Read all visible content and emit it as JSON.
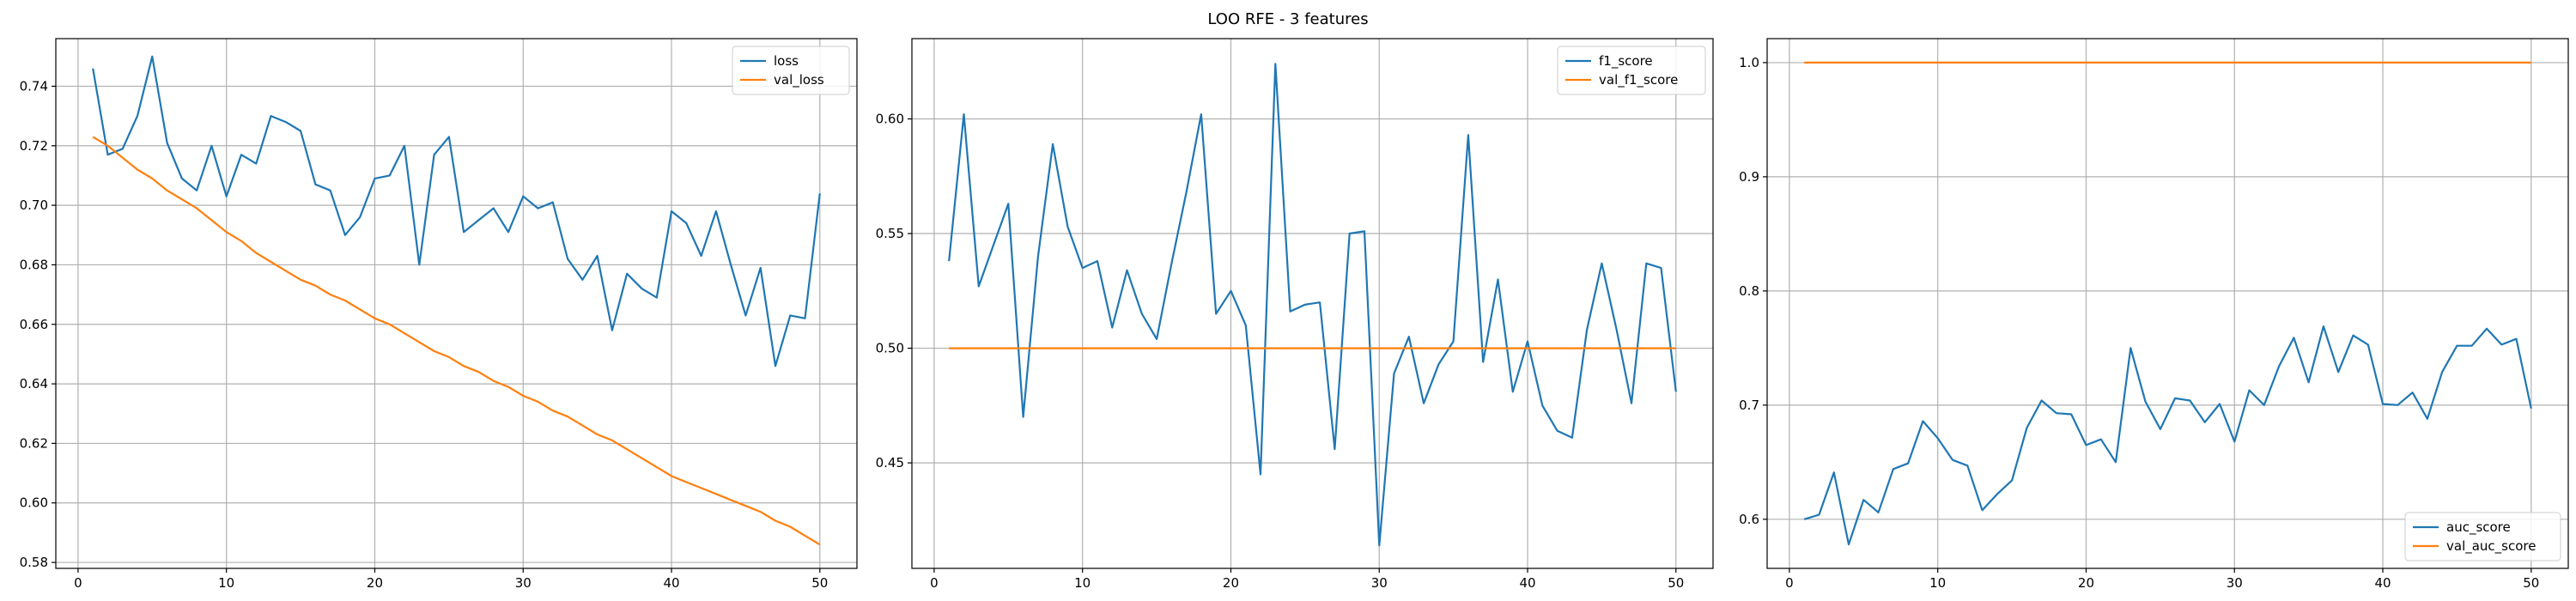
{
  "figure": {
    "title": "LOO RFE - 3 features"
  },
  "chart_data": [
    {
      "type": "line",
      "x": [
        1,
        2,
        3,
        4,
        5,
        6,
        7,
        8,
        9,
        10,
        11,
        12,
        13,
        14,
        15,
        16,
        17,
        18,
        19,
        20,
        21,
        22,
        23,
        24,
        25,
        26,
        27,
        28,
        29,
        30,
        31,
        32,
        33,
        34,
        35,
        36,
        37,
        38,
        39,
        40,
        41,
        42,
        43,
        44,
        45,
        46,
        47,
        48,
        49,
        50
      ],
      "series": [
        {
          "name": "loss",
          "color": "#1f77b4",
          "values": [
            0.746,
            0.717,
            0.719,
            0.73,
            0.75,
            0.721,
            0.709,
            0.705,
            0.72,
            0.703,
            0.717,
            0.714,
            0.73,
            0.728,
            0.725,
            0.707,
            0.705,
            0.69,
            0.696,
            0.709,
            0.71,
            0.72,
            0.68,
            0.717,
            0.723,
            0.691,
            0.695,
            0.699,
            0.691,
            0.703,
            0.699,
            0.701,
            0.682,
            0.675,
            0.683,
            0.658,
            0.677,
            0.672,
            0.669,
            0.698,
            0.694,
            0.683,
            0.698,
            0.68,
            0.663,
            0.679,
            0.646,
            0.663,
            0.662,
            0.704
          ]
        },
        {
          "name": "val_loss",
          "color": "#ff7f0e",
          "values": [
            0.723,
            0.72,
            0.716,
            0.712,
            0.709,
            0.705,
            0.702,
            0.699,
            0.695,
            0.691,
            0.688,
            0.684,
            0.681,
            0.678,
            0.675,
            0.673,
            0.67,
            0.668,
            0.665,
            0.662,
            0.66,
            0.657,
            0.654,
            0.651,
            0.649,
            0.646,
            0.644,
            0.641,
            0.639,
            0.636,
            0.634,
            0.631,
            0.629,
            0.626,
            0.623,
            0.621,
            0.618,
            0.615,
            0.612,
            0.609,
            0.607,
            0.605,
            0.603,
            0.601,
            0.599,
            0.597,
            0.594,
            0.592,
            0.589,
            0.586
          ]
        }
      ],
      "xlim": [
        -1.5,
        52.5
      ],
      "ylim": [
        0.578,
        0.756
      ],
      "xticks": [
        0,
        10,
        20,
        30,
        40,
        50
      ],
      "yticks": [
        0.58,
        0.6,
        0.62,
        0.64,
        0.66,
        0.68,
        0.7,
        0.72,
        0.74
      ],
      "ytick_labels": [
        "0.58",
        "0.60",
        "0.62",
        "0.64",
        "0.66",
        "0.68",
        "0.70",
        "0.72",
        "0.74"
      ],
      "grid": true,
      "legend_position": "top-right"
    },
    {
      "type": "line",
      "x": [
        1,
        2,
        3,
        4,
        5,
        6,
        7,
        8,
        9,
        10,
        11,
        12,
        13,
        14,
        15,
        16,
        17,
        18,
        19,
        20,
        21,
        22,
        23,
        24,
        25,
        26,
        27,
        28,
        29,
        30,
        31,
        32,
        33,
        34,
        35,
        36,
        37,
        38,
        39,
        40,
        41,
        42,
        43,
        44,
        45,
        46,
        47,
        48,
        49,
        50
      ],
      "series": [
        {
          "name": "f1_score",
          "color": "#1f77b4",
          "values": [
            0.538,
            0.602,
            0.527,
            0.545,
            0.563,
            0.47,
            0.54,
            0.589,
            0.553,
            0.535,
            0.538,
            0.509,
            0.534,
            0.515,
            0.504,
            0.537,
            0.568,
            0.602,
            0.515,
            0.525,
            0.51,
            0.445,
            0.624,
            0.516,
            0.519,
            0.52,
            0.456,
            0.55,
            0.551,
            0.414,
            0.489,
            0.505,
            0.476,
            0.493,
            0.503,
            0.593,
            0.494,
            0.53,
            0.481,
            0.503,
            0.475,
            0.464,
            0.461,
            0.508,
            0.537,
            0.508,
            0.476,
            0.537,
            0.535,
            0.481
          ]
        },
        {
          "name": "val_f1_score",
          "color": "#ff7f0e",
          "values": [
            0.5,
            0.5,
            0.5,
            0.5,
            0.5,
            0.5,
            0.5,
            0.5,
            0.5,
            0.5,
            0.5,
            0.5,
            0.5,
            0.5,
            0.5,
            0.5,
            0.5,
            0.5,
            0.5,
            0.5,
            0.5,
            0.5,
            0.5,
            0.5,
            0.5,
            0.5,
            0.5,
            0.5,
            0.5,
            0.5,
            0.5,
            0.5,
            0.5,
            0.5,
            0.5,
            0.5,
            0.5,
            0.5,
            0.5,
            0.5,
            0.5,
            0.5,
            0.5,
            0.5,
            0.5,
            0.5,
            0.5,
            0.5,
            0.5,
            0.5
          ]
        }
      ],
      "xlim": [
        -1.5,
        52.5
      ],
      "ylim": [
        0.404,
        0.635
      ],
      "xticks": [
        0,
        10,
        20,
        30,
        40,
        50
      ],
      "yticks": [
        0.45,
        0.5,
        0.55,
        0.6
      ],
      "ytick_labels": [
        "0.45",
        "0.50",
        "0.55",
        "0.60"
      ],
      "grid": true,
      "legend_position": "top-right"
    },
    {
      "type": "line",
      "x": [
        1,
        2,
        3,
        4,
        5,
        6,
        7,
        8,
        9,
        10,
        11,
        12,
        13,
        14,
        15,
        16,
        17,
        18,
        19,
        20,
        21,
        22,
        23,
        24,
        25,
        26,
        27,
        28,
        29,
        30,
        31,
        32,
        33,
        34,
        35,
        36,
        37,
        38,
        39,
        40,
        41,
        42,
        43,
        44,
        45,
        46,
        47,
        48,
        49,
        50
      ],
      "series": [
        {
          "name": "auc_score",
          "color": "#1f77b4",
          "values": [
            0.6,
            0.604,
            0.641,
            0.578,
            0.617,
            0.606,
            0.644,
            0.649,
            0.686,
            0.671,
            0.652,
            0.647,
            0.608,
            0.622,
            0.634,
            0.68,
            0.704,
            0.693,
            0.692,
            0.665,
            0.67,
            0.65,
            0.75,
            0.703,
            0.679,
            0.706,
            0.704,
            0.685,
            0.701,
            0.668,
            0.713,
            0.7,
            0.734,
            0.759,
            0.72,
            0.769,
            0.729,
            0.761,
            0.753,
            0.701,
            0.7,
            0.711,
            0.688,
            0.729,
            0.752,
            0.752,
            0.767,
            0.753,
            0.758,
            0.697
          ]
        },
        {
          "name": "val_auc_score",
          "color": "#ff7f0e",
          "values": [
            1.0,
            1.0,
            1.0,
            1.0,
            1.0,
            1.0,
            1.0,
            1.0,
            1.0,
            1.0,
            1.0,
            1.0,
            1.0,
            1.0,
            1.0,
            1.0,
            1.0,
            1.0,
            1.0,
            1.0,
            1.0,
            1.0,
            1.0,
            1.0,
            1.0,
            1.0,
            1.0,
            1.0,
            1.0,
            1.0,
            1.0,
            1.0,
            1.0,
            1.0,
            1.0,
            1.0,
            1.0,
            1.0,
            1.0,
            1.0,
            1.0,
            1.0,
            1.0,
            1.0,
            1.0,
            1.0,
            1.0,
            1.0,
            1.0,
            1.0
          ]
        }
      ],
      "xlim": [
        -1.5,
        52.5
      ],
      "ylim": [
        0.557,
        1.021
      ],
      "xticks": [
        0,
        10,
        20,
        30,
        40,
        50
      ],
      "yticks": [
        0.6,
        0.7,
        0.8,
        0.9,
        1.0
      ],
      "ytick_labels": [
        "0.6",
        "0.7",
        "0.8",
        "0.9",
        "1.0"
      ],
      "grid": true,
      "legend_position": "bottom-right"
    }
  ]
}
